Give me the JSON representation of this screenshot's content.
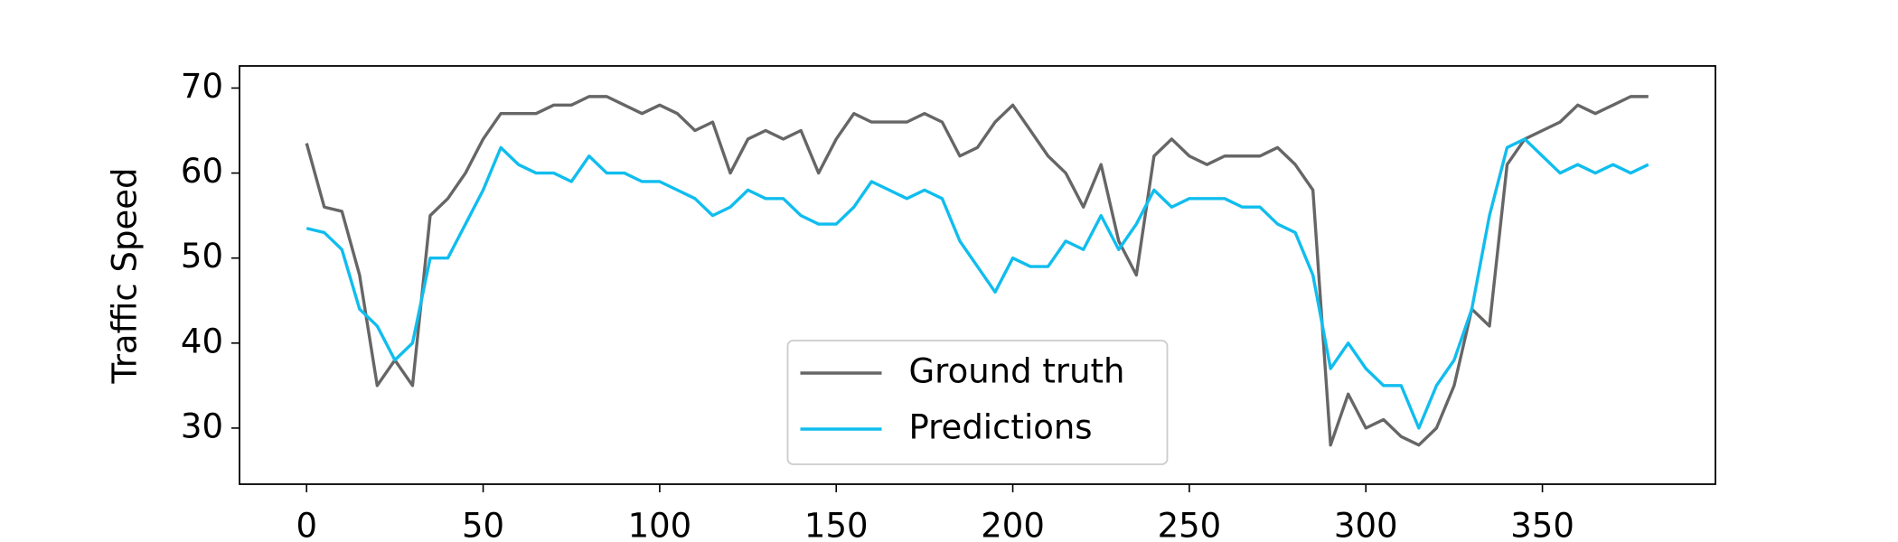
{
  "chart_data": {
    "type": "line",
    "y_label": "Traffic Speed",
    "x": [
      0,
      5,
      10,
      15,
      20,
      25,
      30,
      35,
      40,
      45,
      50,
      55,
      60,
      65,
      70,
      75,
      80,
      85,
      90,
      95,
      100,
      105,
      110,
      115,
      120,
      125,
      130,
      135,
      140,
      145,
      150,
      155,
      160,
      165,
      170,
      175,
      180,
      185,
      190,
      195,
      200,
      205,
      210,
      215,
      220,
      225,
      230,
      235,
      240,
      245,
      250,
      255,
      260,
      265,
      270,
      275,
      280,
      285,
      290,
      295,
      300,
      305,
      310,
      315,
      320,
      325,
      330,
      335,
      340,
      345,
      350,
      355,
      360,
      365,
      370,
      375,
      380
    ],
    "series": [
      {
        "name": "Ground truth",
        "color": "#666666",
        "values": [
          63.5,
          56,
          55.5,
          48,
          35,
          38,
          35,
          55,
          57,
          60,
          64,
          67,
          67,
          67,
          68,
          68,
          69,
          69,
          68,
          67,
          68,
          67,
          65,
          66,
          60,
          64,
          65,
          64,
          65,
          60,
          64,
          67,
          66,
          66,
          66,
          67,
          66,
          62,
          63,
          66,
          68,
          65,
          62,
          60,
          56,
          61,
          52,
          48,
          62,
          64,
          62,
          61,
          62,
          62,
          62,
          63,
          61,
          58,
          28,
          34,
          30,
          31,
          29,
          28,
          30,
          35,
          44,
          42,
          61,
          64,
          65,
          66,
          68,
          67,
          68,
          69,
          69
        ]
      },
      {
        "name": "Predictions",
        "color": "#10bdee",
        "values": [
          53.5,
          53,
          51,
          44,
          42,
          38,
          40,
          50,
          50,
          54,
          58,
          63,
          61,
          60,
          60,
          59,
          62,
          60,
          60,
          59,
          59,
          58,
          57,
          55,
          56,
          58,
          57,
          57,
          55,
          54,
          54,
          56,
          59,
          58,
          57,
          58,
          57,
          52,
          49,
          46,
          50,
          49,
          49,
          52,
          51,
          55,
          51,
          54,
          58,
          56,
          57,
          57,
          57,
          56,
          56,
          54,
          53,
          48,
          37,
          40,
          37,
          35,
          35,
          30,
          35,
          38,
          44,
          55,
          63,
          64,
          62,
          60,
          61,
          60,
          61,
          60,
          61
        ]
      }
    ],
    "xlim": [
      -19,
      399
    ],
    "ylim": [
      23.4,
      72.6
    ],
    "xticks": [
      0,
      50,
      100,
      150,
      200,
      250,
      300,
      350
    ],
    "yticks": [
      30,
      40,
      50,
      60,
      70
    ],
    "legend": "lower center",
    "grid": false
  }
}
